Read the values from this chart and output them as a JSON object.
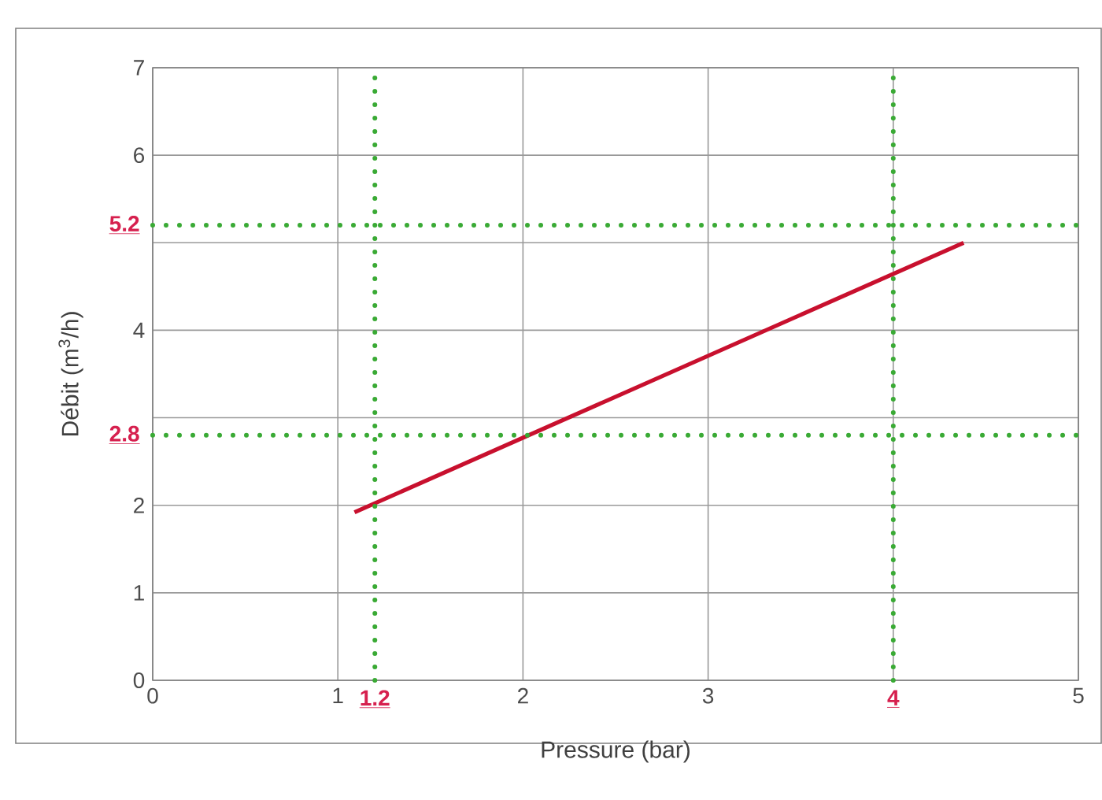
{
  "chart_data": {
    "type": "line",
    "xlabel": "Pressure (bar)",
    "ylabel": "Débit (m$^{3}$/h)",
    "x": [
      1.09,
      4.38
    ],
    "series": [
      {
        "color": "#c8102e",
        "values": [
          1.92,
          5.0
        ]
      }
    ],
    "xlim": [
      0,
      5
    ],
    "ylim": [
      0,
      7
    ],
    "xticks": [
      0,
      1,
      2,
      3,
      {
        "value": 4,
        "label": null
      },
      5
    ],
    "yticks": [
      0,
      1,
      2,
      {
        "value": 3,
        "label": null
      },
      4,
      {
        "value": 5,
        "label": null
      },
      6,
      7
    ],
    "grid": true,
    "line_style": "solid",
    "marker": "none",
    "ref_lines": [
      {
        "axis": "x",
        "value": 1.2,
        "label": "1.2",
        "color": "#3aaa35",
        "line_style": "dotted"
      },
      {
        "axis": "x",
        "value": 4,
        "label": "4",
        "color": "#3aaa35",
        "line_style": "dotted"
      },
      {
        "axis": "y",
        "value": 2.8,
        "label": "2.8",
        "color": "#3aaa35",
        "line_style": "dotted"
      },
      {
        "axis": "y",
        "value": 5.2,
        "label": "5.2",
        "color": "#3aaa35",
        "line_style": "dotted"
      }
    ]
  }
}
